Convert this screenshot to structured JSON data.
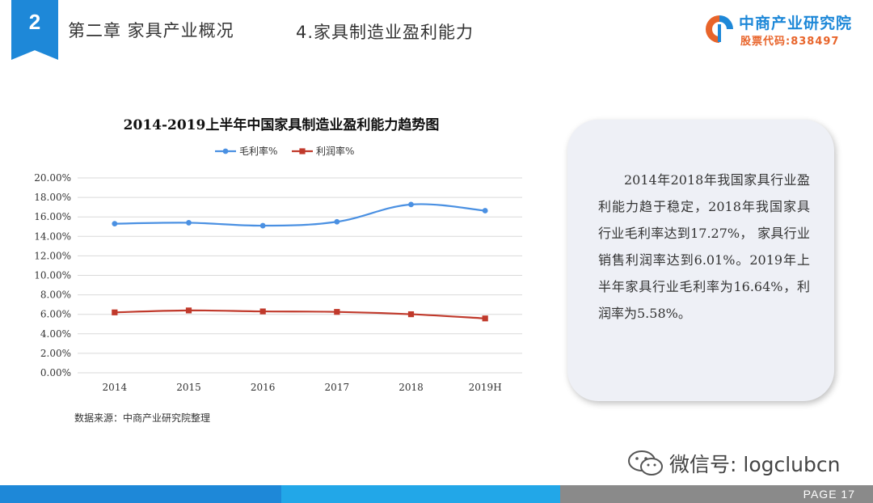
{
  "header": {
    "chapter_number": "2",
    "chapter_title": "第二章 家具产业概况",
    "section_title": "4.家具制造业盈利能力"
  },
  "logo": {
    "name": "中商产业研究院",
    "stock_code": "股票代码:838497",
    "icon": "zhongshang-logo-icon"
  },
  "chart_data": {
    "type": "line",
    "title": "2014-2019上半年中国家具制造业盈利能力趋势图",
    "categories": [
      "2014",
      "2015",
      "2016",
      "2017",
      "2018",
      "2019H"
    ],
    "series": [
      {
        "name": "毛利率%",
        "values": [
          15.3,
          15.4,
          15.1,
          15.5,
          17.27,
          16.64
        ],
        "color": "#4A90E2"
      },
      {
        "name": "利润率%",
        "values": [
          6.2,
          6.4,
          6.3,
          6.25,
          6.01,
          5.58
        ],
        "color": "#C0392B"
      }
    ],
    "y_ticks": [
      "0.00%",
      "2.00%",
      "4.00%",
      "6.00%",
      "8.00%",
      "10.00%",
      "12.00%",
      "14.00%",
      "16.00%",
      "18.00%",
      "20.00%"
    ],
    "ylim": [
      0,
      20
    ],
    "grid": true,
    "legend_position": "top"
  },
  "source_note": "数据来源：中商产业研究院整理",
  "summary": "2014年2018年我国家具行业盈利能力趋于稳定，2018年我国家具行业毛利率达到17.27%， 家具行业销售利润率达到6.01%。2019年上半年家具行业毛利率为16.64%，利润率为5.58%。",
  "wechat": {
    "label": "微信号: logclubcn",
    "icon": "wechat-icon"
  },
  "footer": {
    "page_label": "PAGE  17"
  },
  "colors": {
    "brand_blue": "#1E88D8",
    "accent_orange": "#E8642A"
  }
}
